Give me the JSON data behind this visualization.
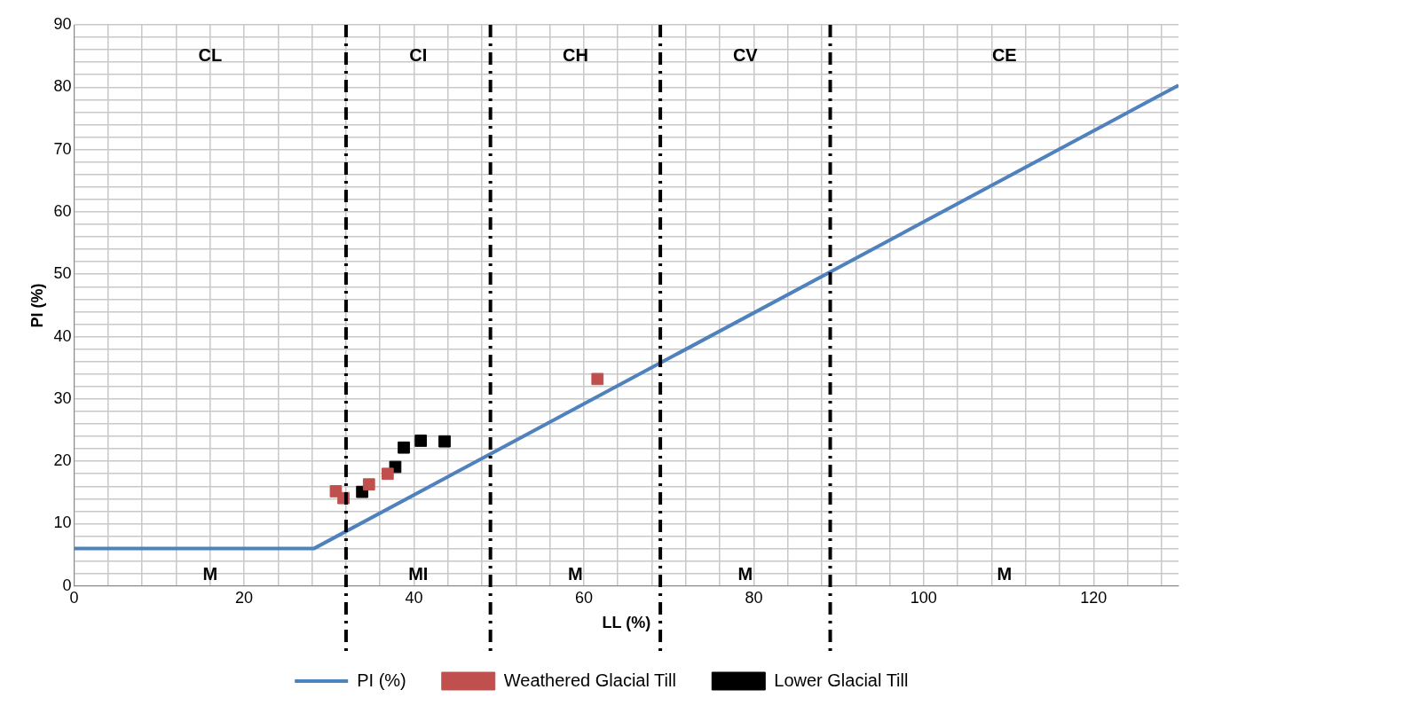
{
  "chart_data": {
    "type": "scatter",
    "xlabel": "LL (%)",
    "ylabel": "PI (%)",
    "xlim": [
      0,
      130
    ],
    "ylim": [
      0,
      90
    ],
    "xticks": [
      0,
      {
        "value": 4,
        "label": null
      },
      {
        "value": 8,
        "label": null
      },
      {
        "value": 12,
        "label": null
      },
      {
        "value": 16,
        "label": null
      },
      20,
      {
        "value": 24,
        "label": null
      },
      {
        "value": 28,
        "label": null
      },
      {
        "value": 32,
        "label": null
      },
      {
        "value": 36,
        "label": null
      },
      40,
      {
        "value": 44,
        "label": null
      },
      {
        "value": 48,
        "label": null
      },
      {
        "value": 52,
        "label": null
      },
      {
        "value": 56,
        "label": null
      },
      60,
      {
        "value": 64,
        "label": null
      },
      {
        "value": 68,
        "label": null
      },
      {
        "value": 72,
        "label": null
      },
      {
        "value": 76,
        "label": null
      },
      80,
      {
        "value": 84,
        "label": null
      },
      {
        "value": 88,
        "label": null
      },
      {
        "value": 92,
        "label": null
      },
      {
        "value": 96,
        "label": null
      },
      100,
      {
        "value": 104,
        "label": null
      },
      {
        "value": 108,
        "label": null
      },
      {
        "value": 112,
        "label": null
      },
      {
        "value": 116,
        "label": null
      },
      120,
      {
        "value": 124,
        "label": null
      },
      {
        "value": 128,
        "label": null
      }
    ],
    "yticks": [
      0,
      {
        "value": 2,
        "label": null
      },
      {
        "value": 4,
        "label": null
      },
      {
        "value": 6,
        "label": null
      },
      {
        "value": 8,
        "label": null
      },
      10,
      {
        "value": 12,
        "label": null
      },
      {
        "value": 14,
        "label": null
      },
      {
        "value": 16,
        "label": null
      },
      {
        "value": 18,
        "label": null
      },
      20,
      {
        "value": 22,
        "label": null
      },
      {
        "value": 24,
        "label": null
      },
      {
        "value": 26,
        "label": null
      },
      {
        "value": 28,
        "label": null
      },
      30,
      {
        "value": 32,
        "label": null
      },
      {
        "value": 34,
        "label": null
      },
      {
        "value": 36,
        "label": null
      },
      {
        "value": 38,
        "label": null
      },
      40,
      {
        "value": 42,
        "label": null
      },
      {
        "value": 44,
        "label": null
      },
      {
        "value": 46,
        "label": null
      },
      {
        "value": 48,
        "label": null
      },
      50,
      {
        "value": 52,
        "label": null
      },
      {
        "value": 54,
        "label": null
      },
      {
        "value": 56,
        "label": null
      },
      {
        "value": 58,
        "label": null
      },
      60,
      {
        "value": 62,
        "label": null
      },
      {
        "value": 64,
        "label": null
      },
      {
        "value": 66,
        "label": null
      },
      {
        "value": 68,
        "label": null
      },
      70,
      {
        "value": 72,
        "label": null
      },
      {
        "value": 74,
        "label": null
      },
      {
        "value": 76,
        "label": null
      },
      {
        "value": 78,
        "label": null
      },
      80,
      {
        "value": 82,
        "label": null
      },
      {
        "value": 84,
        "label": null
      },
      {
        "value": 86,
        "label": null
      },
      {
        "value": 88,
        "label": null
      },
      90
    ],
    "grid": true,
    "legend": "bottom",
    "series": [
      {
        "name": "PI (%)",
        "type": "line",
        "color": "#4f81bd",
        "marker": "none",
        "x": [
          0,
          28.2,
          130
        ],
        "values": [
          6,
          6,
          80.3
        ]
      },
      {
        "name": "Weathered Glacial Till",
        "type": "scatter",
        "color": "#c0504d",
        "marker": "square",
        "x": [
          30.8,
          31.7,
          34.7,
          36.9,
          61.6
        ],
        "values": [
          15.2,
          14.1,
          16.3,
          18,
          33.2
        ]
      },
      {
        "name": "Lower Glacial Till",
        "type": "scatter",
        "color": "#000000",
        "marker": "square",
        "x": [
          33.9,
          37.8,
          38.8,
          40.8,
          43.6
        ],
        "values": [
          15.1,
          19.1,
          22.2,
          23.3,
          23.2
        ]
      }
    ],
    "ref_lines": [
      {
        "axis": "x",
        "value": 32,
        "color": "#000000",
        "line_style": "dashdot"
      },
      {
        "axis": "x",
        "value": 49,
        "color": "#000000",
        "line_style": "dashdot"
      },
      {
        "axis": "x",
        "value": 69,
        "color": "#000000",
        "line_style": "dashdot"
      },
      {
        "axis": "x",
        "value": 89,
        "color": "#000000",
        "line_style": "dashdot"
      }
    ],
    "annotations": [
      "CL",
      "CI",
      "CH",
      "CV",
      "CE",
      "M",
      "MI",
      "M",
      "M",
      "M"
    ]
  }
}
